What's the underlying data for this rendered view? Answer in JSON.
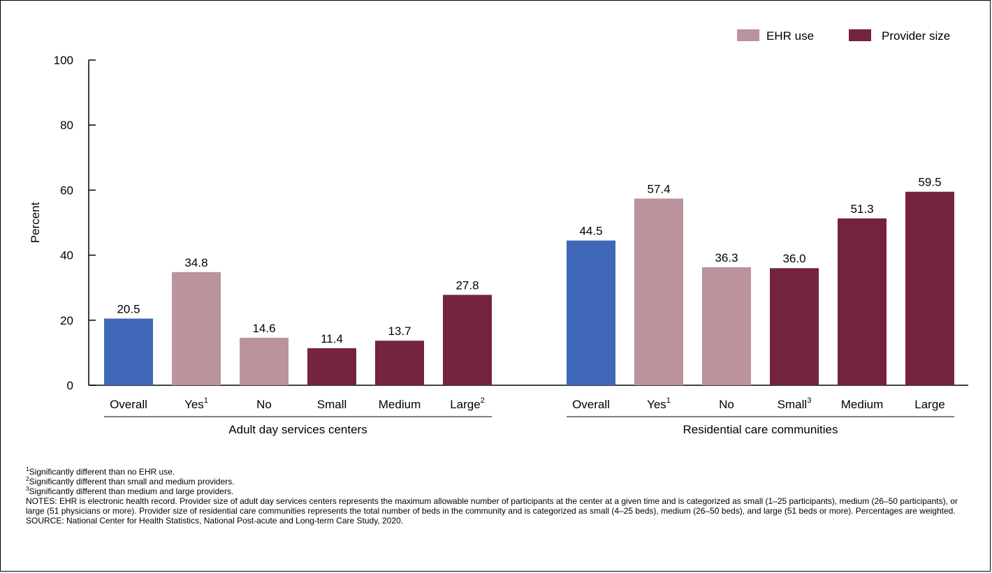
{
  "chart_data": {
    "type": "bar",
    "ylabel": "Percent",
    "ylim": [
      0,
      100
    ],
    "yticks": [
      "0",
      "20",
      "40",
      "60",
      "80",
      "100"
    ],
    "grid": false,
    "legend": {
      "position": "top-right",
      "entries": [
        {
          "label": "EHR use",
          "color": "#bb939c"
        },
        {
          "label": "Provider size",
          "color": "#74243d"
        }
      ]
    },
    "overall_color": "#4068b8",
    "groups": [
      {
        "name": "Adult day services centers",
        "bars": [
          {
            "label": "Overall",
            "sup": "",
            "value": 20.5,
            "value_label": "20.5",
            "kind": "overall"
          },
          {
            "label": "Yes",
            "sup": "1",
            "value": 34.8,
            "value_label": "34.8",
            "kind": "ehr"
          },
          {
            "label": "No",
            "sup": "",
            "value": 14.6,
            "value_label": "14.6",
            "kind": "ehr"
          },
          {
            "label": "Small",
            "sup": "",
            "value": 11.4,
            "value_label": "11.4",
            "kind": "size"
          },
          {
            "label": "Medium",
            "sup": "",
            "value": 13.7,
            "value_label": "13.7",
            "kind": "size"
          },
          {
            "label": "Large",
            "sup": "2",
            "value": 27.8,
            "value_label": "27.8",
            "kind": "size"
          }
        ]
      },
      {
        "name": "Residential care communities",
        "bars": [
          {
            "label": "Overall",
            "sup": "",
            "value": 44.5,
            "value_label": "44.5",
            "kind": "overall"
          },
          {
            "label": "Yes",
            "sup": "1",
            "value": 57.4,
            "value_label": "57.4",
            "kind": "ehr"
          },
          {
            "label": "No",
            "sup": "",
            "value": 36.3,
            "value_label": "36.3",
            "kind": "ehr"
          },
          {
            "label": "Small",
            "sup": "3",
            "value": 36.0,
            "value_label": "36.0",
            "kind": "size"
          },
          {
            "label": "Medium",
            "sup": "",
            "value": 51.3,
            "value_label": "51.3",
            "kind": "size"
          },
          {
            "label": "Large",
            "sup": "",
            "value": 59.5,
            "value_label": "59.5",
            "kind": "size"
          }
        ]
      }
    ]
  },
  "notes": {
    "footnote1": {
      "sup": "1",
      "text": "Significantly different than no EHR use."
    },
    "footnote2": {
      "sup": "2",
      "text": "Significantly different than small and medium providers."
    },
    "footnote3": {
      "sup": "3",
      "text": "Significantly different than medium and large providers."
    },
    "notes_text": "NOTES: EHR is electronic health record. Provider size of adult day services centers represents the maximum allowable number of participants at the center at a given time and is categorized as small (1–25 participants), medium (26–50 participants), or large (51 physicians or more). Provider size of residential care communities represents the total number of beds in the community and is categorized as small (4–25 beds), medium (26–50 beds), and large (51 beds or more). Percentages are weighted.",
    "source_text": "SOURCE: National Center for Health Statistics, National Post-acute and Long-term Care Study, 2020."
  }
}
